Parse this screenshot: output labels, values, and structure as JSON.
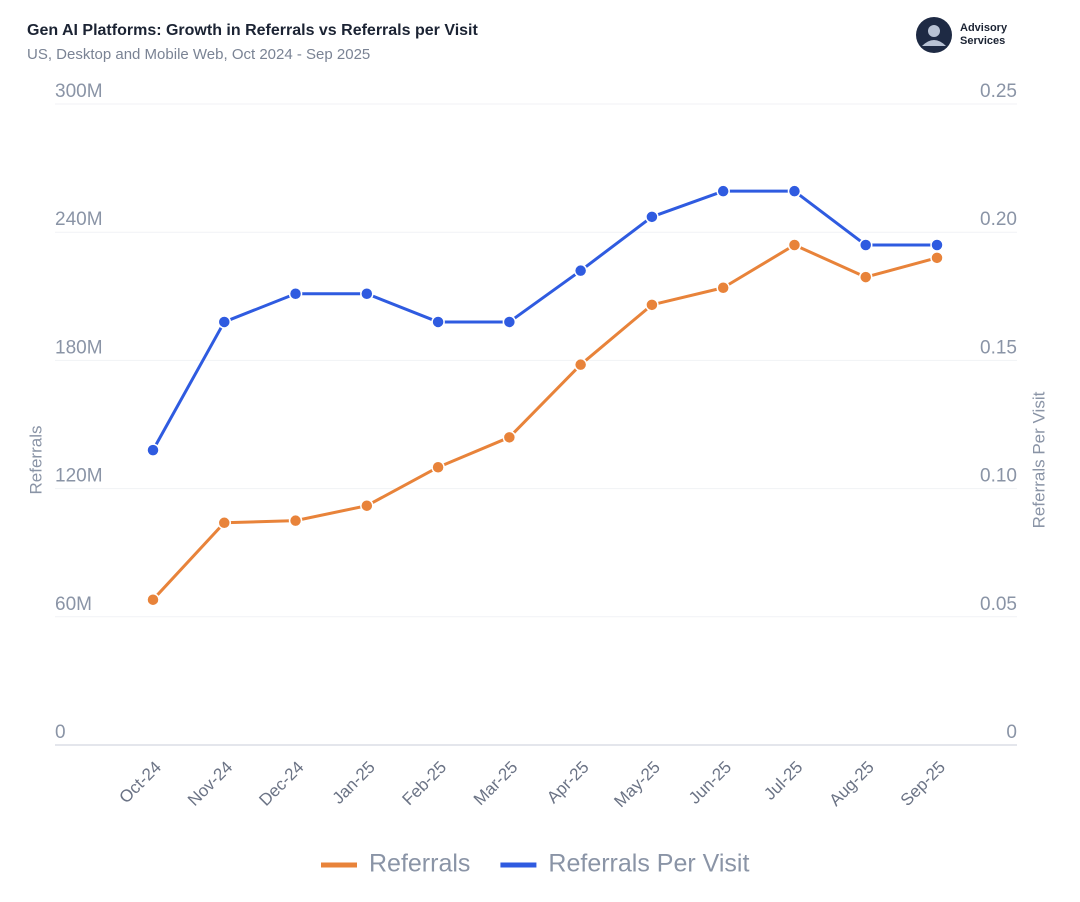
{
  "chart_data": {
    "type": "line",
    "title": "Gen AI Platforms: Growth in Referrals vs Referrals per Visit",
    "subtitle": "US, Desktop and Mobile Web, Oct 2024 - Sep 2025",
    "logo_text": [
      "Advisory",
      "Services"
    ],
    "y_label": "Referrals",
    "y2_label": "Referrals Per Visit",
    "categories": [
      "Oct-24",
      "Nov-24",
      "Dec-24",
      "Jan-25",
      "Feb-25",
      "Mar-25",
      "Apr-25",
      "May-25",
      "Jun-25",
      "Jul-25",
      "Aug-25",
      "Sep-25"
    ],
    "series": [
      {
        "name": "Referrals",
        "color": "#e8833a",
        "values": [
          68000000,
          104000000,
          105000000,
          112000000,
          130000000,
          144000000,
          178000000,
          206000000,
          214000000,
          234000000,
          219000000,
          228000000
        ]
      },
      {
        "name": "Referrals Per Visit",
        "color": "#2f5be0",
        "axis": "y2",
        "values": [
          0.115,
          0.165,
          0.176,
          0.176,
          0.165,
          0.165,
          0.185,
          0.206,
          0.216,
          0.216,
          0.195,
          0.195
        ]
      }
    ],
    "ylim": [
      0,
      300000000
    ],
    "yticks": [
      0,
      {
        "value": 60000000,
        "label": "60M"
      },
      {
        "value": 120000000,
        "label": "120M"
      },
      {
        "value": 180000000,
        "label": "180M"
      },
      {
        "value": 240000000,
        "label": "240M"
      },
      {
        "value": 300000000,
        "label": "300M"
      }
    ],
    "y2lim": [
      0,
      0.25
    ],
    "y2ticks": [
      0,
      0.05,
      {
        "value": 0.1,
        "label": "0.10"
      },
      0.15,
      {
        "value": 0.2,
        "label": "0.20"
      },
      0.25
    ],
    "grid": true,
    "legend": "bottom"
  }
}
